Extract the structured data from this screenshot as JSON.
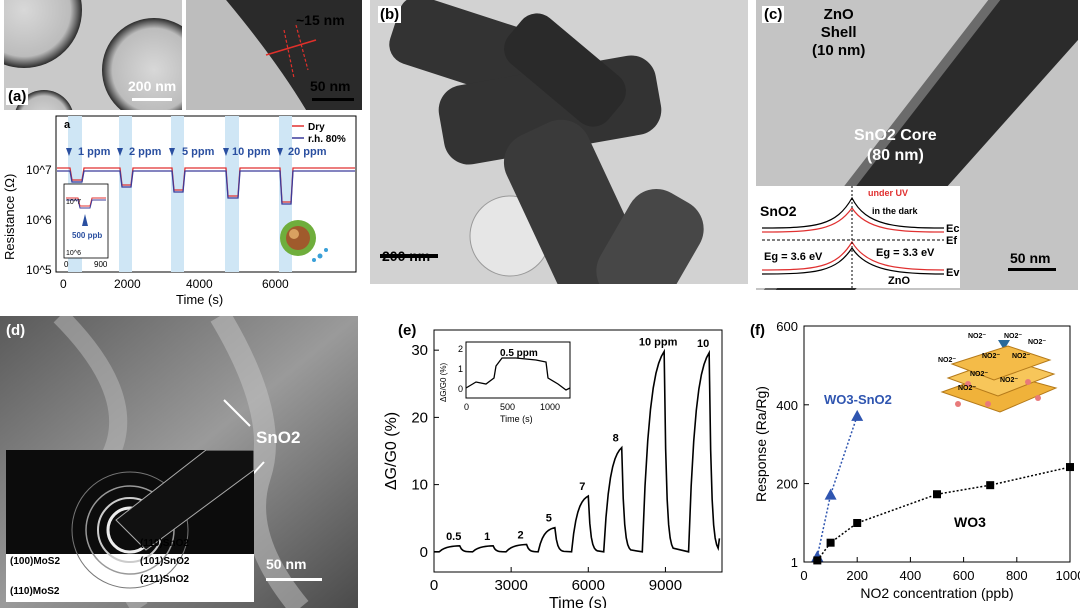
{
  "panel_a": {
    "label": "(a)",
    "tem_scale_left": "200 nm",
    "tem_scale_right": "50 nm",
    "thickness": "~15 nm",
    "plot_letter": "a",
    "legend": [
      "Dry",
      "r.h. 80%"
    ],
    "ylabel": "Resistance (Ω)",
    "xlabel": "Time (s)",
    "xticks": [
      "0",
      "2000",
      "4000",
      "6000"
    ],
    "yticks": [
      "10^5",
      "10^6",
      "10^7"
    ],
    "ppm_labels": [
      "1 ppm",
      "2 ppm",
      "5 ppm",
      "10 ppm",
      "20 ppm"
    ],
    "inset_label": "500 ppb",
    "inset_xticks": [
      "0",
      "900"
    ],
    "inset_yticks": [
      "10^7",
      "10^6"
    ]
  },
  "panel_b": {
    "label": "(b)",
    "scale": "200 nm"
  },
  "panel_c": {
    "label": "(c)",
    "shell_title": "ZnO",
    "shell_sub": "Shell",
    "shell_dim": "(10 nm)",
    "core_title": "SnO2 Core",
    "core_dim": "(80 nm)",
    "scale": "50 nm",
    "band": {
      "left_label": "SnO2",
      "right_label": "ZnO",
      "under_uv": "under UV",
      "in_dark": "in the dark",
      "eg_left": "Eg = 3.6 eV",
      "eg_right": "Eg = 3.3 eV",
      "ec": "Ec",
      "ef": "Ef",
      "ev": "Ev"
    }
  },
  "panel_d": {
    "label": "(d)",
    "sno2": "SnO2",
    "scale": "50 nm",
    "diffraction_labels": [
      "(110)SnO2",
      "(101)SnO2",
      "(211)SnO2",
      "(100)MoS2",
      "(110)MoS2"
    ]
  },
  "panel_e": {
    "label": "(e)",
    "inset_label": "0.5 ppm",
    "inset_ylabel": "ΔG/G0 (%)",
    "inset_xlabel": "Time (s)",
    "inset_xticks": [
      "0",
      "500",
      "1000"
    ],
    "inset_yticks": [
      "0",
      "1",
      "2"
    ]
  },
  "panel_f": {
    "label": "(f)",
    "series_wo3sno2": "WO3-SnO2",
    "series_wo3": "WO3",
    "no2_labels": [
      "NO2⁻",
      "NO2⁻",
      "NO2⁻",
      "NO2⁻",
      "NO2⁻",
      "NO2⁻",
      "NO2⁻",
      "NO2⁻",
      "NO2⁻"
    ]
  },
  "chart_data": [
    {
      "type": "line",
      "panel": "(e)",
      "xlabel": "Time (s)",
      "ylabel": "ΔG/G0 (%)",
      "xlim": [
        0,
        11200
      ],
      "ylim": [
        -3,
        33
      ],
      "xticks": [
        0,
        3000,
        6000,
        9000
      ],
      "yticks": [
        0,
        10,
        20,
        30
      ],
      "peak_labels": [
        "0.5",
        "1",
        "2",
        "5",
        "7",
        "8",
        "10 ppm",
        "10"
      ],
      "pulses": [
        {
          "start": 200,
          "end": 1000,
          "peak": 0.9
        },
        {
          "start": 1500,
          "end": 2300,
          "peak": 0.9
        },
        {
          "start": 2800,
          "end": 3600,
          "peak": 1.1
        },
        {
          "start": 4050,
          "end": 4700,
          "peak": 3.6
        },
        {
          "start": 5350,
          "end": 6000,
          "peak": 8.3
        },
        {
          "start": 6600,
          "end": 7300,
          "peak": 15.5
        },
        {
          "start": 8100,
          "end": 8950,
          "peak": 29.8
        },
        {
          "start": 9900,
          "end": 10700,
          "peak": 29.6
        }
      ]
    },
    {
      "type": "scatter",
      "panel": "(f)",
      "xlabel": "NO2 concentration (ppb)",
      "ylabel": "Response (Ra/Rg)",
      "xlim": [
        0,
        1000
      ],
      "ylim": [
        1,
        600
      ],
      "xticks": [
        0,
        200,
        400,
        600,
        800,
        1000
      ],
      "yticks": [
        1,
        200,
        400,
        600
      ],
      "series": [
        {
          "name": "WO3-SnO2",
          "x": [
            50,
            100,
            200
          ],
          "y": [
            15,
            172,
            372
          ]
        },
        {
          "name": "WO3",
          "x": [
            50,
            100,
            200,
            500,
            700,
            1000
          ],
          "y": [
            5,
            50,
            100,
            173,
            196,
            242
          ]
        }
      ]
    }
  ]
}
